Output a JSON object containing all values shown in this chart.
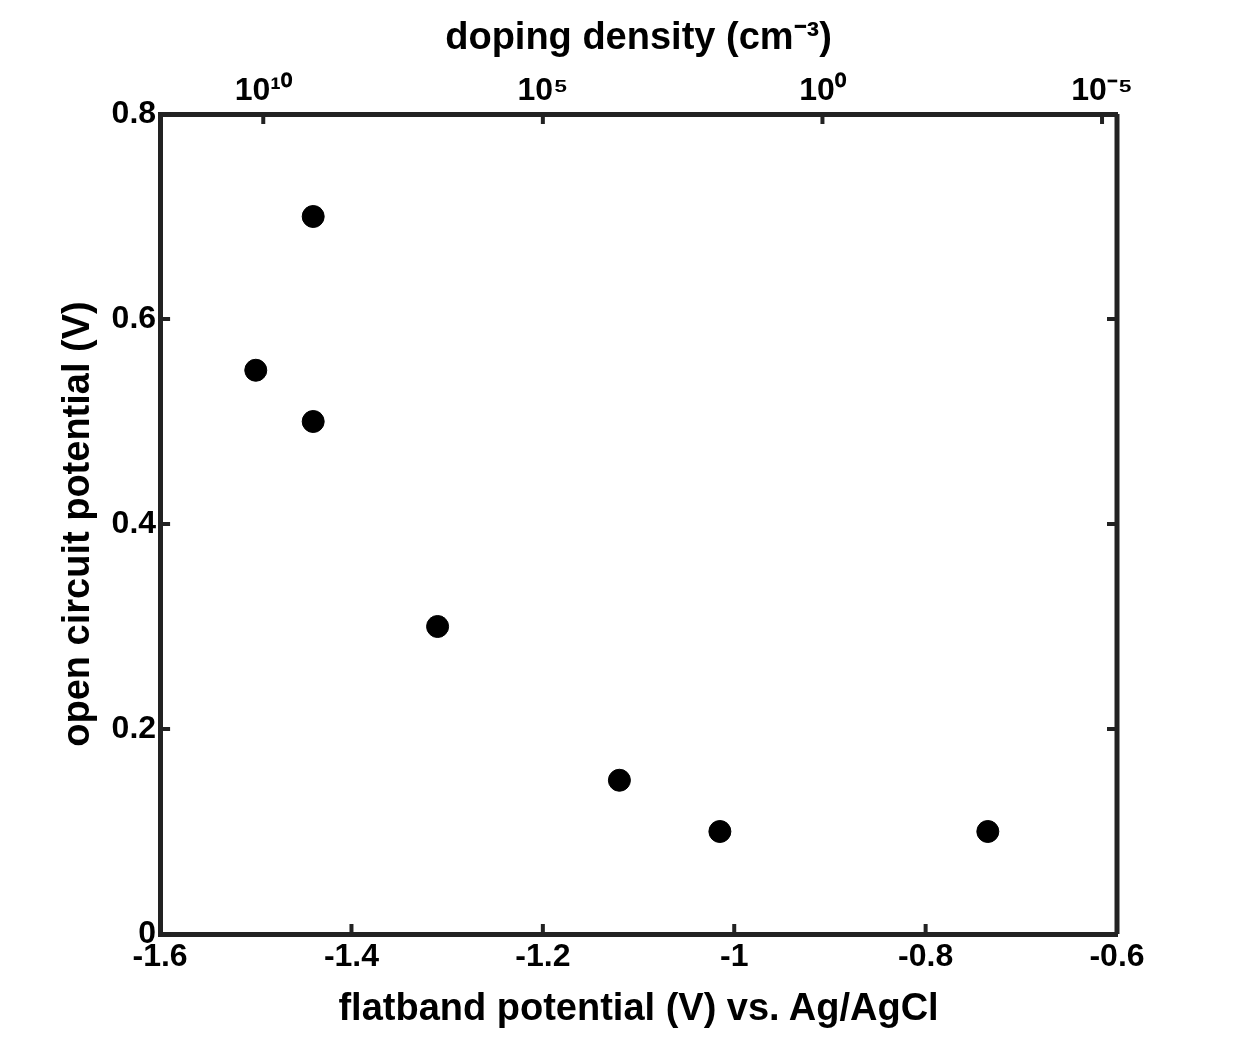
{
  "chart_data": {
    "type": "scatter",
    "xlabel": "flatband potential (V) vs. Ag/AgCl",
    "ylabel": "open circuit potential (V)",
    "x2label": "doping density (cm⁻³)",
    "x": [
      -1.5,
      -1.44,
      -1.44,
      -1.31,
      -1.12,
      -1.015,
      -0.735
    ],
    "series": [
      {
        "color": "#000000",
        "values": [
          0.55,
          0.7,
          0.5,
          0.3,
          0.15,
          0.1,
          0.1
        ]
      }
    ],
    "xlim": [
      -1.6,
      -0.6
    ],
    "xticks": [
      -1.6,
      -1.4,
      -1.2,
      -1,
      -0.8,
      -0.6
    ],
    "ylim": [
      0,
      0.8
    ],
    "yticks": [
      0,
      0.2,
      0.4,
      0.6,
      0.8
    ],
    "x2lim": [
      700000000000.0,
      5.4e-06
    ],
    "x2ticks": [
      {
        "value": 10000000000.0,
        "label": "10¹⁰"
      },
      {
        "value": 100000.0,
        "label": "10⁵"
      },
      {
        "value": 1,
        "label": "10⁰"
      },
      {
        "value": 1e-05,
        "label": "10⁻⁵"
      }
    ],
    "log": "x2",
    "grid": false,
    "legend": false,
    "marker": "circle"
  }
}
